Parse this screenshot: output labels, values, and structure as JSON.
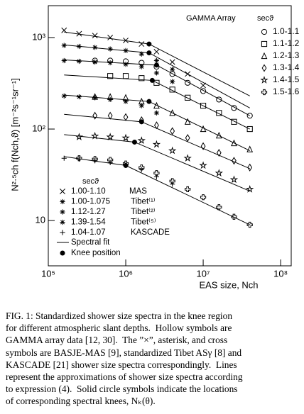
{
  "chart_data": {
    "type": "scatter",
    "x_label": "EAS size, Nch",
    "y_label": "N²·⁵ch f(Nch,ϑ)   [m⁻²s⁻¹sr⁻¹]",
    "log_x": true,
    "log_y": true,
    "xlim": [
      100000,
      137000000
    ],
    "ylim": [
      3.2,
      2230
    ],
    "xticks": [
      {
        "value": 100000,
        "label": "10⁵"
      },
      {
        "value": 1000000,
        "label": "10⁶"
      },
      {
        "value": 10000000,
        "label": "10⁷"
      },
      {
        "value": 100000000,
        "label": "10⁸"
      }
    ],
    "yticks": [
      10,
      {
        "value": 100,
        "label": "10²"
      },
      {
        "value": 1000,
        "label": "10³"
      }
    ],
    "legend_title": "GAMMA Array",
    "legend_sec": "secϑ",
    "x": [
      160000,
      250000,
      400000,
      630000,
      1000000,
      1600000,
      2500000,
      4000000,
      6300000,
      10000000,
      16000000,
      25000000,
      40000000
    ],
    "series": [
      {
        "name": "1.0-1.1",
        "marker": "circle",
        "values": [
          null,
          null,
          560,
          560,
          550,
          530,
          480,
          400,
          320,
          260,
          210,
          170,
          140
        ]
      },
      {
        "name": "1.1-1.2",
        "marker": "square",
        "values": [
          null,
          null,
          null,
          380,
          380,
          360,
          320,
          270,
          220,
          180,
          150,
          120,
          100
        ]
      },
      {
        "name": "1.2-1.3",
        "marker": "triangle",
        "values": [
          null,
          null,
          225,
          225,
          220,
          200,
          180,
          150,
          120,
          100,
          85,
          70,
          60
        ]
      },
      {
        "name": "1.3-1.4",
        "marker": "diamond",
        "values": [
          null,
          null,
          140,
          140,
          135,
          125,
          110,
          95,
          80,
          65,
          55,
          45,
          38
        ]
      },
      {
        "name": "1.4-1.5",
        "marker": "star",
        "values": [
          null,
          82,
          84,
          82,
          80,
          75,
          68,
          58,
          48,
          40,
          33,
          28,
          22
        ]
      },
      {
        "name": "1.5-1.6",
        "marker": "cross",
        "values": [
          null,
          48,
          47,
          46,
          42,
          38,
          33,
          27,
          22,
          18,
          14,
          11,
          9
        ]
      }
    ],
    "legend2_sec": "secϑ",
    "others": [
      {
        "name": "1.00-1.10",
        "label": "MAS",
        "marker": "x",
        "values": [
          1200,
          1100,
          1050,
          1000,
          930,
          850,
          700,
          540,
          400,
          300,
          null,
          null,
          null
        ]
      },
      {
        "name": "1.00-1.075",
        "label": "Tibet⁽¹⁾",
        "marker": "asterisk",
        "values": [
          820,
          800,
          780,
          750,
          720,
          660,
          560,
          450,
          null,
          null,
          null,
          null,
          null
        ]
      },
      {
        "name": "1.12-1.27",
        "label": "Tibet⁽²⁾",
        "marker": "asterisk",
        "values": [
          560,
          550,
          540,
          530,
          510,
          480,
          410,
          330,
          null,
          null,
          null,
          null,
          null
        ]
      },
      {
        "name": "1.39-1.54",
        "label": "Tibet⁽⁵⁾",
        "marker": "asterisk",
        "values": [
          230,
          225,
          220,
          210,
          200,
          180,
          150,
          null,
          null,
          null,
          null,
          null,
          null
        ]
      },
      {
        "name": "1.04-1.07",
        "label": "KASCADE",
        "marker": "plus",
        "values": [
          48,
          47,
          45,
          43,
          40,
          36,
          30,
          25,
          null,
          null,
          null,
          null,
          null
        ]
      }
    ],
    "fit_name": "Spectral fit",
    "fits": [
      {
        "x": [
          160000,
          2000000,
          40000000
        ],
        "values": [
          1150,
          850,
          230
        ]
      },
      {
        "x": [
          160000,
          2000000,
          40000000
        ],
        "values": [
          830,
          680,
          170
        ]
      },
      {
        "x": [
          160000,
          2500000,
          40000000
        ],
        "values": [
          570,
          500,
          140
        ]
      },
      {
        "x": [
          160000,
          2200000,
          40000000
        ],
        "values": [
          390,
          340,
          100
        ]
      },
      {
        "x": [
          160000,
          2000000,
          40000000
        ],
        "values": [
          235,
          200,
          58
        ]
      },
      {
        "x": [
          160000,
          1600000,
          40000000
        ],
        "values": [
          145,
          120,
          37
        ]
      },
      {
        "x": [
          160000,
          1300000,
          40000000
        ],
        "values": [
          87,
          72,
          21
        ]
      },
      {
        "x": [
          160000,
          1000000,
          40000000
        ],
        "values": [
          50,
          40,
          9
        ]
      }
    ],
    "knees": {
      "name": "Knee position",
      "x": [
        2000000,
        2000000,
        2500000,
        2200000,
        2000000,
        1600000,
        1300000,
        1000000
      ],
      "values": [
        850,
        680,
        500,
        340,
        200,
        120,
        72,
        40
      ]
    }
  },
  "caption": {
    "lines": [
      "FIG. 1: Standardized shower size spectra in the knee region",
      "for different atmospheric slant depths.  Hollow symbols are",
      "GAMMA array data [12, 30].  The ”×”, asterisk, and cross",
      "symbols are BASJE-MAS [9], standardized Tibet ASγ [8] and",
      "KASCADE [21] shower size spectra correspondingly.  Lines",
      "represent the approximations of shower size spectra according",
      "to expression (4).  Solid circle symbols indicate the locations",
      "of corresponding spectral knees, Nₖ(θ)."
    ]
  }
}
